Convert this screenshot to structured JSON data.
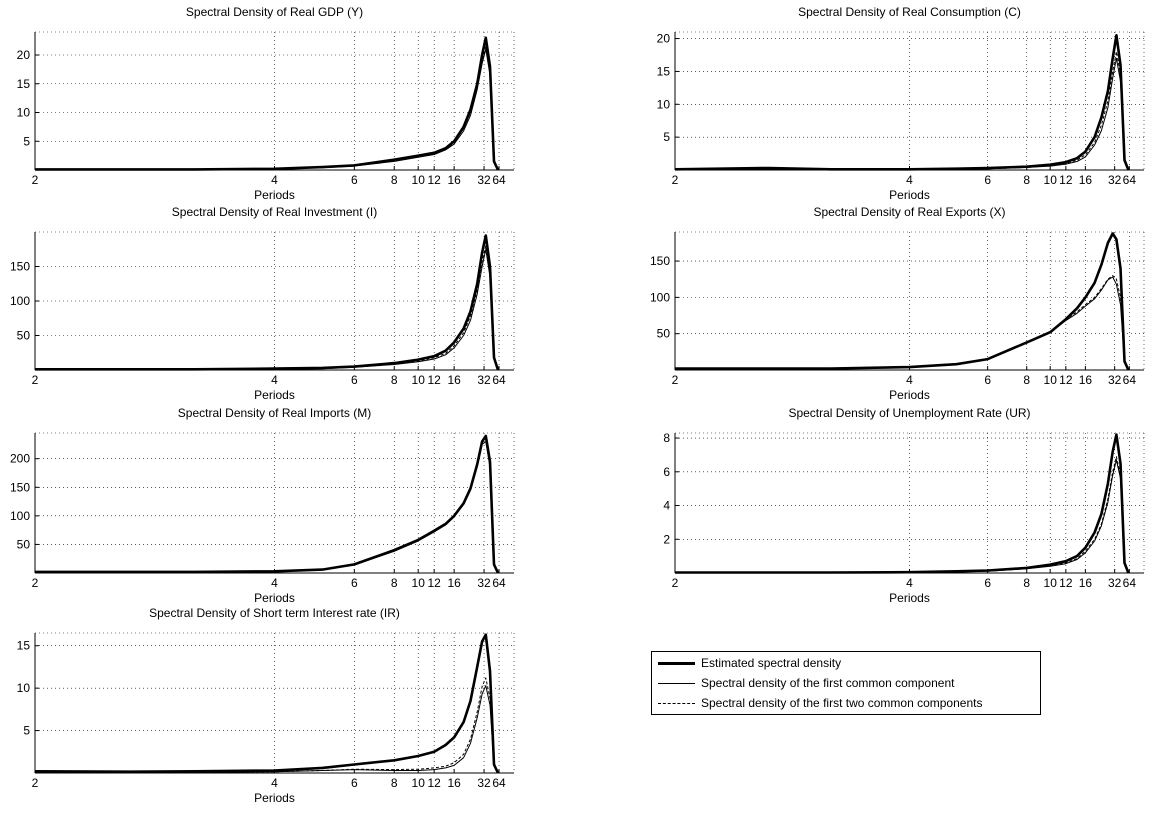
{
  "legend": {
    "estimated": "Estimated spectral density",
    "first": "Spectral density of the first common component",
    "two": "Spectral density of the first two common components"
  },
  "chart_data": [
    {
      "type": "line",
      "title": "Spectral Density of Real GDP (Y)",
      "xlabel": "Periods",
      "x_tick_labels": [
        "64",
        "32",
        "16",
        "12",
        "10",
        "8",
        "6",
        "4",
        "2"
      ],
      "x_tick_periods": [
        64,
        32,
        16,
        12,
        10,
        8,
        6,
        4,
        2
      ],
      "ylim": [
        0,
        24
      ],
      "yticks": [
        5,
        10,
        15,
        20
      ],
      "grid": true,
      "x_periods": [
        60,
        48,
        40,
        34,
        30,
        26,
        22,
        19,
        16,
        14,
        12,
        10,
        8,
        6,
        5,
        4,
        3,
        2.5,
        2
      ],
      "series": [
        {
          "role": "estimated",
          "values": [
            0,
            1.5,
            18,
            23,
            20,
            15,
            10.5,
            7.5,
            5,
            3.8,
            3,
            2.5,
            1.8,
            0.8,
            0.5,
            0.2,
            0.1,
            0.1,
            0.1
          ]
        },
        {
          "role": "first",
          "values": [
            0,
            1.5,
            16.5,
            21,
            18.5,
            14,
            9.5,
            6.8,
            4.5,
            3.5,
            2.7,
            2.2,
            1.5,
            0.7,
            0.4,
            0.2,
            0.1,
            0.1,
            0.1
          ]
        },
        {
          "role": "two",
          "values": [
            0,
            1.5,
            17,
            21.5,
            19,
            14.5,
            10,
            7.2,
            4.8,
            3.6,
            2.9,
            2.4,
            1.7,
            0.8,
            0.5,
            0.2,
            0.1,
            0.1,
            0.1
          ]
        }
      ]
    },
    {
      "type": "line",
      "title": "Spectral Density of Real Consumption (C)",
      "xlabel": "Periods",
      "x_tick_labels": [
        "64",
        "32",
        "16",
        "12",
        "10",
        "8",
        "6",
        "4",
        "2"
      ],
      "x_tick_periods": [
        64,
        32,
        16,
        12,
        10,
        8,
        6,
        4,
        2
      ],
      "ylim": [
        0,
        21
      ],
      "yticks": [
        5,
        10,
        15,
        20
      ],
      "grid": true,
      "x_periods": [
        60,
        48,
        40,
        34,
        30,
        26,
        22,
        19,
        16,
        14,
        12,
        10,
        8,
        6,
        5,
        4,
        3,
        2.5,
        2
      ],
      "series": [
        {
          "role": "estimated",
          "values": [
            0,
            1.5,
            16,
            20.5,
            17,
            12,
            8,
            5,
            2.8,
            1.8,
            1.2,
            0.8,
            0.5,
            0.3,
            0.2,
            0.1,
            0.1,
            0.3,
            0.1
          ]
        },
        {
          "role": "first",
          "values": [
            0,
            1.3,
            13.5,
            17,
            14,
            9.5,
            6,
            3.8,
            2,
            1.3,
            0.9,
            0.6,
            0.4,
            0.2,
            0.1,
            0.1,
            0.1,
            0.1,
            0.1
          ]
        },
        {
          "role": "two",
          "values": [
            0,
            1.4,
            14.5,
            18,
            15,
            10.5,
            6.8,
            4.2,
            2.3,
            1.5,
            1,
            0.7,
            0.4,
            0.2,
            0.2,
            0.1,
            0.1,
            0.2,
            0.1
          ]
        }
      ]
    },
    {
      "type": "line",
      "title": "Spectral Density of Real Investment (I)",
      "xlabel": "Periods",
      "x_tick_labels": [
        "64",
        "32",
        "16",
        "12",
        "10",
        "8",
        "6",
        "4",
        "2"
      ],
      "x_tick_periods": [
        64,
        32,
        16,
        12,
        10,
        8,
        6,
        4,
        2
      ],
      "ylim": [
        0,
        200
      ],
      "yticks": [
        50,
        100,
        150
      ],
      "grid": true,
      "x_periods": [
        60,
        48,
        40,
        34,
        30,
        26,
        22,
        19,
        16,
        14,
        12,
        10,
        8,
        6,
        5,
        4,
        3,
        2.5,
        2
      ],
      "series": [
        {
          "role": "estimated",
          "values": [
            0,
            18,
            150,
            195,
            170,
            125,
            85,
            60,
            40,
            28,
            20,
            15,
            10,
            5,
            3,
            2,
            1,
            1,
            1
          ]
        },
        {
          "role": "first",
          "values": [
            0,
            16,
            135,
            175,
            150,
            110,
            72,
            50,
            32,
            22,
            16,
            12,
            8,
            4,
            2,
            1,
            1,
            1,
            1
          ]
        },
        {
          "role": "two",
          "values": [
            0,
            17,
            140,
            180,
            158,
            116,
            78,
            54,
            35,
            24,
            18,
            13,
            9,
            4,
            3,
            2,
            1,
            1,
            1
          ]
        }
      ]
    },
    {
      "type": "line",
      "title": "Spectral Density of Real Exports (X)",
      "xlabel": "Periods",
      "x_tick_labels": [
        "64",
        "32",
        "16",
        "12",
        "10",
        "8",
        "6",
        "4",
        "2"
      ],
      "x_tick_periods": [
        64,
        32,
        16,
        12,
        10,
        8,
        6,
        4,
        2
      ],
      "ylim": [
        0,
        190
      ],
      "yticks": [
        50,
        100,
        150
      ],
      "grid": true,
      "x_periods": [
        60,
        48,
        40,
        34,
        30,
        26,
        22,
        19,
        16,
        14,
        12,
        10,
        8,
        6,
        5,
        4,
        3,
        2.5,
        2
      ],
      "series": [
        {
          "role": "estimated",
          "values": [
            0,
            12,
            140,
            180,
            188,
            175,
            145,
            120,
            100,
            85,
            70,
            52,
            38,
            15,
            8,
            4,
            2,
            2,
            2
          ]
        },
        {
          "role": "first",
          "values": [
            0,
            10,
            90,
            118,
            128,
            124,
            110,
            98,
            88,
            78,
            68,
            52,
            38,
            15,
            8,
            4,
            2,
            2,
            2
          ]
        },
        {
          "role": "two",
          "values": [
            0,
            11,
            100,
            125,
            130,
            125,
            112,
            100,
            90,
            80,
            70,
            53,
            38,
            15,
            8,
            4,
            2,
            2,
            2
          ]
        }
      ]
    },
    {
      "type": "line",
      "title": "Spectral Density of Real Imports (M)",
      "xlabel": "Periods",
      "x_tick_labels": [
        "64",
        "32",
        "16",
        "12",
        "10",
        "8",
        "6",
        "4",
        "2"
      ],
      "x_tick_periods": [
        64,
        32,
        16,
        12,
        10,
        8,
        6,
        4,
        2
      ],
      "ylim": [
        0,
        245
      ],
      "yticks": [
        50,
        100,
        150,
        200
      ],
      "grid": true,
      "x_periods": [
        60,
        48,
        40,
        34,
        30,
        26,
        22,
        19,
        16,
        14,
        12,
        10,
        8,
        6,
        5,
        4,
        3,
        2.5,
        2
      ],
      "series": [
        {
          "role": "estimated",
          "values": [
            0,
            15,
            195,
            240,
            230,
            190,
            148,
            122,
            100,
            86,
            74,
            58,
            40,
            15,
            6,
            3,
            2,
            2,
            2
          ]
        },
        {
          "role": "first",
          "values": [
            0,
            14,
            185,
            230,
            225,
            186,
            145,
            120,
            98,
            84,
            72,
            56,
            38,
            14,
            6,
            3,
            2,
            2,
            2
          ]
        },
        {
          "role": "two",
          "values": [
            0,
            15,
            190,
            236,
            228,
            188,
            147,
            121,
            99,
            85,
            73,
            57,
            39,
            14,
            6,
            3,
            2,
            2,
            2
          ]
        }
      ]
    },
    {
      "type": "line",
      "title": "Spectral Density of Unemployment Rate (UR)",
      "xlabel": "Periods",
      "x_tick_labels": [
        "64",
        "32",
        "16",
        "12",
        "10",
        "8",
        "6",
        "4",
        "2"
      ],
      "x_tick_periods": [
        64,
        32,
        16,
        12,
        10,
        8,
        6,
        4,
        2
      ],
      "ylim": [
        0,
        8.3
      ],
      "yticks": [
        2,
        4,
        6,
        8
      ],
      "grid": true,
      "x_periods": [
        60,
        48,
        40,
        34,
        30,
        26,
        22,
        19,
        16,
        14,
        12,
        10,
        8,
        6,
        5,
        4,
        3,
        2.5,
        2
      ],
      "series": [
        {
          "role": "estimated",
          "values": [
            0,
            0.6,
            6.5,
            8.2,
            7.2,
            5.3,
            3.5,
            2.4,
            1.5,
            1,
            0.7,
            0.5,
            0.3,
            0.15,
            0.1,
            0.05,
            0.03,
            0.03,
            0.03
          ]
        },
        {
          "role": "first",
          "values": [
            0,
            0.5,
            5.6,
            6.7,
            5.8,
            4.2,
            2.8,
            1.9,
            1.2,
            0.8,
            0.55,
            0.4,
            0.25,
            0.1,
            0.08,
            0.04,
            0.03,
            0.03,
            0.03
          ]
        },
        {
          "role": "two",
          "values": [
            0,
            0.5,
            5.8,
            6.9,
            6,
            4.4,
            2.9,
            2,
            1.3,
            0.85,
            0.6,
            0.42,
            0.27,
            0.12,
            0.08,
            0.04,
            0.03,
            0.03,
            0.03
          ]
        }
      ]
    },
    {
      "type": "line",
      "title": "Spectral Density of Short term Interest rate (IR)",
      "xlabel": "Periods",
      "x_tick_labels": [
        "64",
        "32",
        "16",
        "12",
        "10",
        "8",
        "6",
        "4",
        "2"
      ],
      "x_tick_periods": [
        64,
        32,
        16,
        12,
        10,
        8,
        6,
        4,
        2
      ],
      "ylim": [
        0,
        16.5
      ],
      "yticks": [
        5,
        10,
        15
      ],
      "grid": true,
      "x_periods": [
        60,
        48,
        40,
        34,
        30,
        26,
        22,
        19,
        16,
        14,
        12,
        10,
        8,
        6,
        5,
        4,
        3,
        2.5,
        2
      ],
      "series": [
        {
          "role": "estimated",
          "values": [
            0,
            1,
            12,
            16.3,
            15.5,
            12.5,
            8.5,
            6,
            4.2,
            3.3,
            2.5,
            2,
            1.5,
            1,
            0.6,
            0.3,
            0.2,
            0.15,
            0.2
          ]
        },
        {
          "role": "first",
          "values": [
            0,
            0.8,
            8,
            10.3,
            9.3,
            6.5,
            3.5,
            1.8,
            0.9,
            0.6,
            0.4,
            0.3,
            0.3,
            0.4,
            0.3,
            0.15,
            0.1,
            0.1,
            0.1
          ]
        },
        {
          "role": "two",
          "values": [
            0,
            0.9,
            8.8,
            11.2,
            10.2,
            7.2,
            4,
            2.2,
            1.2,
            0.8,
            0.6,
            0.45,
            0.4,
            0.45,
            0.3,
            0.15,
            0.1,
            0.1,
            0.1
          ]
        }
      ]
    }
  ]
}
